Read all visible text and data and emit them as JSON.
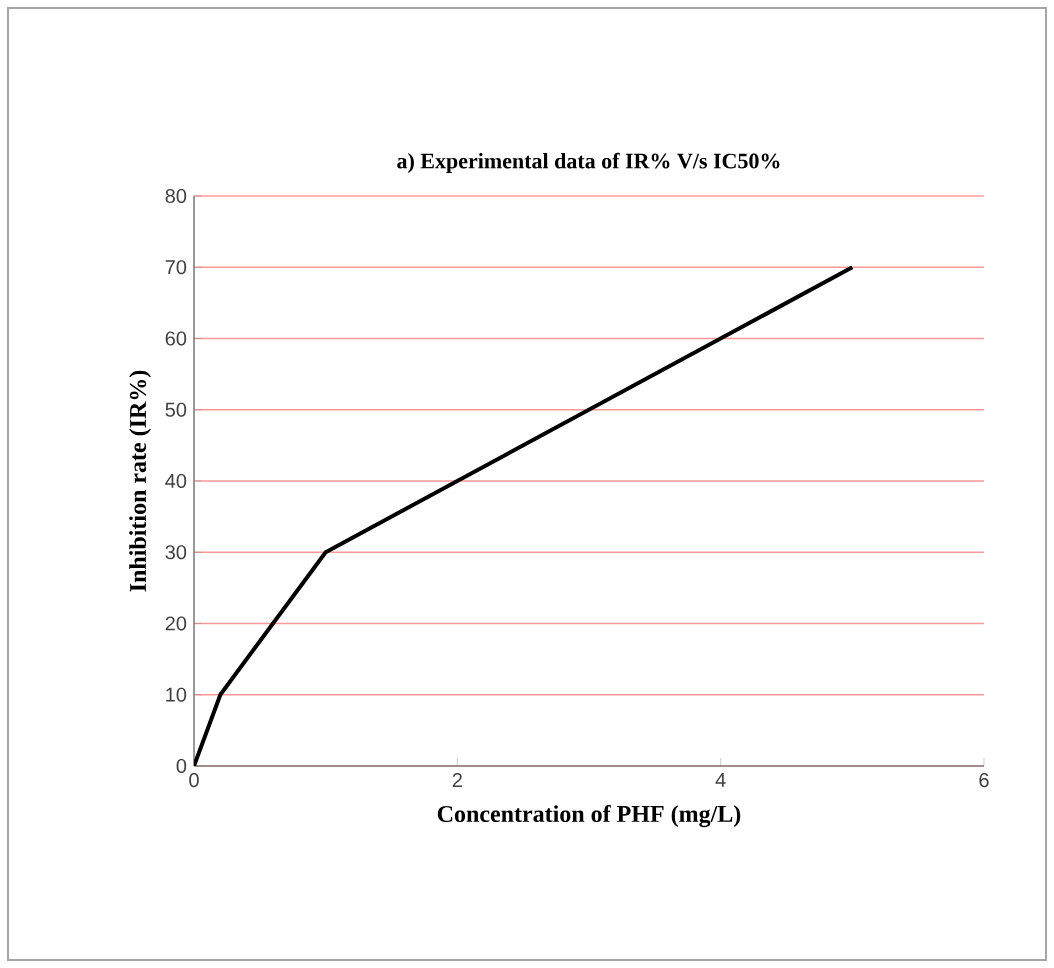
{
  "chart_data": {
    "type": "line",
    "title": "a) Experimental data  of IR% V/s IC50%",
    "xlabel": "Concentration of PHF (mg/L)",
    "ylabel": "Inhibition rate (IR%)",
    "x": [
      0,
      0.2,
      1,
      5
    ],
    "series": [
      {
        "color": "#000000",
        "values": [
          0,
          10,
          30,
          70
        ]
      }
    ],
    "xlim": [
      0,
      6
    ],
    "xticks": [
      0,
      2,
      4,
      6
    ],
    "ylim": [
      0,
      80
    ],
    "yticks": [
      0,
      10,
      20,
      30,
      40,
      50,
      60,
      70,
      80
    ],
    "grid": "y",
    "marker": "none",
    "line_style": "solid"
  }
}
